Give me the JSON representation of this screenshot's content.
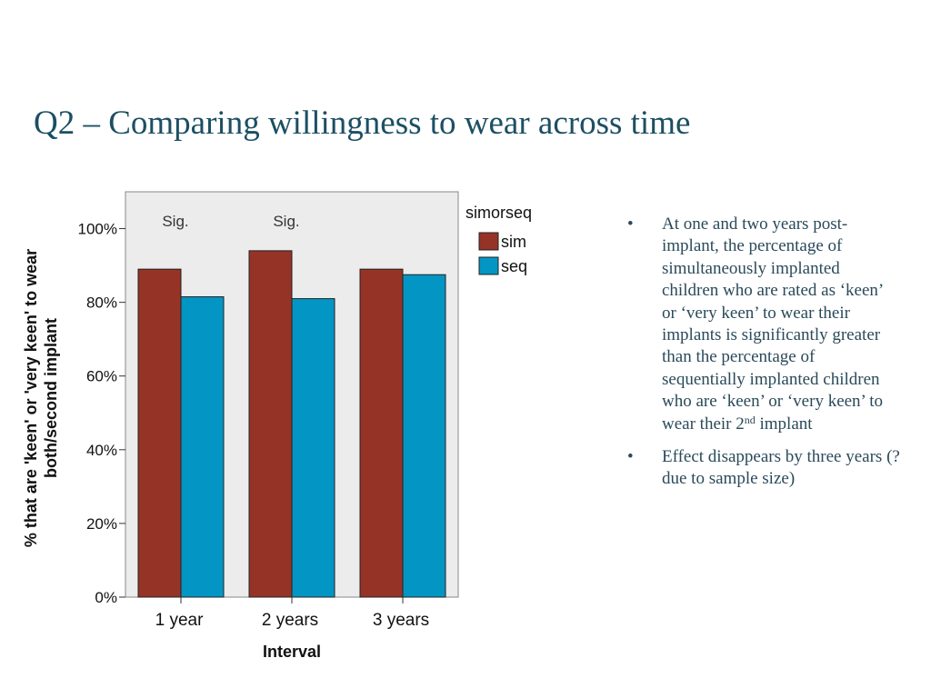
{
  "slide": {
    "title": "Q2 – Comparing willingness to wear across time"
  },
  "chart_data": {
    "type": "bar",
    "xlabel": "Interval",
    "ylabel_line1": "% that are 'keen' or 'very keen' to wear",
    "ylabel_line2": "both/second implant",
    "categories": [
      "1 year",
      "2 years",
      "3 years"
    ],
    "ylim": [
      0,
      110
    ],
    "yticks": [
      "0%",
      "20%",
      "40%",
      "60%",
      "80%",
      "100%"
    ],
    "ytick_values": [
      0,
      20,
      40,
      60,
      80,
      100
    ],
    "legend_title": "simorseq",
    "legend_position": "right",
    "grid": false,
    "series": [
      {
        "name": "sim",
        "color": "#953327",
        "values": [
          89,
          94,
          89
        ]
      },
      {
        "name": "seq",
        "color": "#0396c4",
        "values": [
          81.5,
          81,
          87.5
        ]
      }
    ],
    "annotations": [
      "Sig.",
      "Sig."
    ],
    "plot_background": "#ececec"
  },
  "bullets": [
    {
      "marker": "•",
      "text": "At one and two years post-implant, the percentage of simultaneously implanted children who are rated as ‘keen’ or ‘very keen’ to wear their implants is significantly greater than the percentage of sequentially implanted children who are ‘keen’ or ‘very keen’ to wear their 2",
      "superscript": "nd",
      "text_after": " implant"
    },
    {
      "marker": "•",
      "text": "Effect disappears by three years (? due to sample size)"
    }
  ]
}
